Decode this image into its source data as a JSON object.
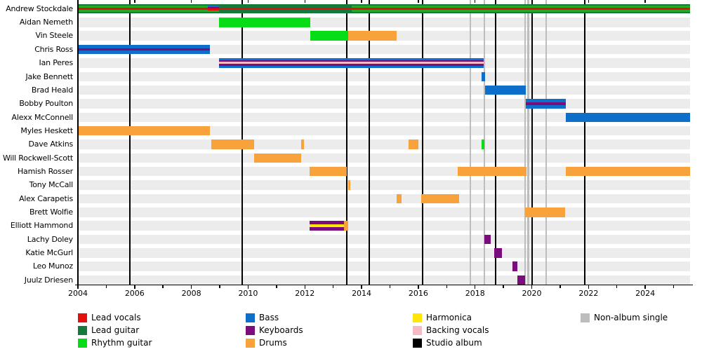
{
  "chart_data": {
    "type": "timeline",
    "subject": "Band members and their roles over time (Gantt-style timeline)",
    "x_axis": {
      "start": 2004,
      "end": 2025.58,
      "labeled_years": [
        2004,
        2006,
        2008,
        2010,
        2012,
        2014,
        2016,
        2018,
        2020,
        2022,
        2024
      ],
      "minor_tick_every": 1,
      "grid": false
    },
    "colors": {
      "lead_vocals": "#e31010",
      "lead_guitar": "#15793b",
      "rhythm_guitar": "#06dd17",
      "rhythm_guitar_dim": "#28a828",
      "bass": "#0d6fc9",
      "keyboards": "#7b0c7b",
      "drums": "#f7a23b",
      "harmonica": "#ffe607",
      "backing_vocals": "#f6bac5",
      "studio_album": "#000000",
      "non_album_single": "#bdbdbd",
      "row_band": "#ececec"
    },
    "legend": [
      {
        "items": [
          {
            "label": "Lead vocals",
            "color_key": "lead_vocals"
          },
          {
            "label": "Lead guitar",
            "color_key": "lead_guitar"
          },
          {
            "label": "Rhythm guitar",
            "color_key": "rhythm_guitar"
          }
        ]
      },
      {
        "items": [
          {
            "label": "Bass",
            "color_key": "bass"
          },
          {
            "label": "Keyboards",
            "color_key": "keyboards"
          },
          {
            "label": "Drums",
            "color_key": "drums"
          }
        ]
      },
      {
        "items": [
          {
            "label": "Harmonica",
            "color_key": "harmonica"
          },
          {
            "label": "Backing vocals",
            "color_key": "backing_vocals"
          },
          {
            "label": "Studio album",
            "color_key": "studio_album"
          }
        ]
      },
      {
        "items": [
          {
            "label": "Non-album single",
            "color_key": "non_album_single"
          }
        ]
      }
    ],
    "markers": {
      "studio_album": [
        2005.82,
        2009.79,
        2013.48,
        2014.27,
        2016.15,
        2018.72,
        2020.02,
        2021.88
      ],
      "non_album_single": [
        2017.84,
        2018.33,
        2019.77,
        2019.88,
        2020.51
      ]
    },
    "members": [
      {
        "name": "Andrew Stockdale",
        "segments": [
          {
            "start": 2004.0,
            "end": 2008.58,
            "roles": [
              "Lead vocals",
              "Lead guitar",
              "Rhythm guitar"
            ],
            "stripes": [
              [
                "lead_guitar",
                1
              ],
              [
                "rhythm_guitar_dim",
                1
              ],
              [
                "lead_vocals",
                1.4
              ],
              [
                "rhythm_guitar_dim",
                1
              ],
              [
                "lead_guitar",
                1
              ]
            ]
          },
          {
            "start": 2008.58,
            "end": 2008.98,
            "roles": [
              "Lead vocals",
              "Lead guitar",
              "Bass",
              "Keyboards",
              "Rhythm guitar"
            ],
            "stripes": [
              [
                "lead_guitar",
                1
              ],
              [
                "bass",
                1
              ],
              [
                "keyboards",
                1
              ],
              [
                "lead_vocals",
                1.2
              ],
              [
                "rhythm_guitar_dim",
                0.9
              ],
              [
                "lead_guitar",
                1
              ]
            ]
          },
          {
            "start": 2008.98,
            "end": 2013.65,
            "roles": [
              "Lead vocals",
              "Lead guitar"
            ],
            "stripes": [
              [
                "lead_guitar",
                1.6
              ],
              [
                "lead_vocals",
                1.3
              ],
              [
                "lead_guitar",
                1.6
              ]
            ]
          },
          {
            "start": 2013.65,
            "end": 2025.58,
            "roles": [
              "Lead vocals",
              "Lead guitar",
              "Rhythm guitar"
            ],
            "stripes": [
              [
                "lead_guitar",
                1
              ],
              [
                "rhythm_guitar_dim",
                1
              ],
              [
                "lead_vocals",
                1.4
              ],
              [
                "rhythm_guitar_dim",
                1
              ],
              [
                "lead_guitar",
                1
              ]
            ]
          }
        ]
      },
      {
        "name": "Aidan Nemeth",
        "segments": [
          {
            "start": 2008.98,
            "end": 2012.2,
            "roles": [
              "Rhythm guitar"
            ],
            "stripes": [
              [
                "rhythm_guitar",
                1
              ]
            ]
          }
        ]
      },
      {
        "name": "Vin Steele",
        "segments": [
          {
            "start": 2012.2,
            "end": 2013.53,
            "roles": [
              "Rhythm guitar"
            ],
            "stripes": [
              [
                "rhythm_guitar",
                1
              ]
            ]
          },
          {
            "start": 2013.53,
            "end": 2015.24,
            "roles": [
              "Drums"
            ],
            "stripes": [
              [
                "drums",
                1
              ]
            ]
          }
        ]
      },
      {
        "name": "Chris Ross",
        "segments": [
          {
            "start": 2004.0,
            "end": 2008.65,
            "roles": [
              "Bass",
              "Keyboards"
            ],
            "stripes": [
              [
                "bass",
                1.3
              ],
              [
                "keyboards",
                1
              ],
              [
                "bass",
                1.3
              ]
            ]
          }
        ]
      },
      {
        "name": "Ian Peres",
        "segments": [
          {
            "start": 2008.98,
            "end": 2018.31,
            "roles": [
              "Bass",
              "Keyboards",
              "Backing vocals"
            ],
            "stripes": [
              [
                "bass",
                1.1
              ],
              [
                "keyboards",
                0.8
              ],
              [
                "backing_vocals",
                1.1
              ],
              [
                "keyboards",
                0.8
              ],
              [
                "bass",
                1.1
              ]
            ]
          }
        ]
      },
      {
        "name": "Jake Bennett",
        "segments": [
          {
            "start": 2018.23,
            "end": 2018.36,
            "roles": [
              "Bass"
            ],
            "stripes": [
              [
                "bass",
                1
              ]
            ]
          }
        ]
      },
      {
        "name": "Brad Heald",
        "segments": [
          {
            "start": 2018.35,
            "end": 2019.79,
            "roles": [
              "Bass"
            ],
            "stripes": [
              [
                "bass",
                1
              ]
            ]
          }
        ]
      },
      {
        "name": "Bobby Poulton",
        "segments": [
          {
            "start": 2019.79,
            "end": 2021.19,
            "roles": [
              "Bass",
              "Keyboards"
            ],
            "stripes": [
              [
                "bass",
                1.3
              ],
              [
                "keyboards",
                0.9
              ],
              [
                "bass",
                1.3
              ]
            ]
          }
        ]
      },
      {
        "name": "Alexx McConnell",
        "segments": [
          {
            "start": 2021.19,
            "end": 2025.58,
            "roles": [
              "Bass"
            ],
            "stripes": [
              [
                "bass",
                1
              ]
            ]
          }
        ]
      },
      {
        "name": "Myles Heskett",
        "segments": [
          {
            "start": 2004.0,
            "end": 2008.65,
            "roles": [
              "Drums"
            ],
            "stripes": [
              [
                "drums",
                1
              ]
            ]
          }
        ]
      },
      {
        "name": "Dave Atkins",
        "segments": [
          {
            "start": 2008.69,
            "end": 2010.21,
            "roles": [
              "Drums"
            ],
            "stripes": [
              [
                "drums",
                1
              ]
            ]
          },
          {
            "start": 2011.87,
            "end": 2011.97,
            "roles": [
              "Drums"
            ],
            "stripes": [
              [
                "drums",
                1
              ]
            ]
          },
          {
            "start": 2015.65,
            "end": 2016.0,
            "roles": [
              "Drums"
            ],
            "stripes": [
              [
                "drums",
                1
              ]
            ]
          },
          {
            "start": 2018.23,
            "end": 2018.33,
            "roles": [
              "Rhythm guitar"
            ],
            "stripes": [
              [
                "rhythm_guitar",
                1
              ]
            ]
          }
        ]
      },
      {
        "name": "Will Rockwell-Scott",
        "segments": [
          {
            "start": 2010.21,
            "end": 2011.87,
            "roles": [
              "Drums"
            ],
            "stripes": [
              [
                "drums",
                1
              ]
            ]
          }
        ]
      },
      {
        "name": "Hamish Rosser",
        "segments": [
          {
            "start": 2012.17,
            "end": 2013.48,
            "roles": [
              "Drums"
            ],
            "stripes": [
              [
                "drums",
                1
              ]
            ]
          },
          {
            "start": 2017.39,
            "end": 2019.82,
            "roles": [
              "Drums"
            ],
            "stripes": [
              [
                "drums",
                1
              ]
            ]
          },
          {
            "start": 2021.19,
            "end": 2025.58,
            "roles": [
              "Drums"
            ],
            "stripes": [
              [
                "drums",
                1
              ]
            ]
          }
        ]
      },
      {
        "name": "Tony McCall",
        "segments": [
          {
            "start": 2013.53,
            "end": 2013.59,
            "roles": [
              "Drums"
            ],
            "stripes": [
              [
                "drums",
                1
              ]
            ]
          }
        ]
      },
      {
        "name": "Alex Carapetis",
        "segments": [
          {
            "start": 2015.24,
            "end": 2015.41,
            "roles": [
              "Drums"
            ],
            "stripes": [
              [
                "drums",
                1
              ]
            ]
          },
          {
            "start": 2016.09,
            "end": 2017.44,
            "roles": [
              "Drums"
            ],
            "stripes": [
              [
                "drums",
                1
              ]
            ]
          }
        ]
      },
      {
        "name": "Brett Wolfie",
        "segments": [
          {
            "start": 2019.77,
            "end": 2021.17,
            "roles": [
              "Drums"
            ],
            "stripes": [
              [
                "drums",
                1
              ]
            ]
          }
        ]
      },
      {
        "name": "Elliott Hammond",
        "segments": [
          {
            "start": 2012.17,
            "end": 2013.37,
            "roles": [
              "Keyboards",
              "Harmonica"
            ],
            "stripes": [
              [
                "keyboards",
                1
              ],
              [
                "harmonica",
                1
              ],
              [
                "keyboards",
                1
              ]
            ]
          },
          {
            "start": 2013.37,
            "end": 2013.52,
            "roles": [
              "Drums"
            ],
            "stripes": [
              [
                "drums",
                1
              ]
            ]
          }
        ]
      },
      {
        "name": "Lachy Doley",
        "segments": [
          {
            "start": 2018.33,
            "end": 2018.56,
            "roles": [
              "Keyboards"
            ],
            "stripes": [
              [
                "keyboards",
                1
              ]
            ]
          }
        ]
      },
      {
        "name": "Katie McGurl",
        "segments": [
          {
            "start": 2018.68,
            "end": 2018.95,
            "roles": [
              "Keyboards"
            ],
            "stripes": [
              [
                "keyboards",
                1
              ]
            ]
          }
        ]
      },
      {
        "name": "Leo Munoz",
        "segments": [
          {
            "start": 2019.32,
            "end": 2019.5,
            "roles": [
              "Keyboards"
            ],
            "stripes": [
              [
                "keyboards",
                1
              ]
            ]
          }
        ]
      },
      {
        "name": "Juulz Driesen",
        "segments": [
          {
            "start": 2019.49,
            "end": 2019.77,
            "roles": [
              "Keyboards"
            ],
            "stripes": [
              [
                "keyboards",
                1
              ]
            ]
          }
        ]
      }
    ]
  }
}
